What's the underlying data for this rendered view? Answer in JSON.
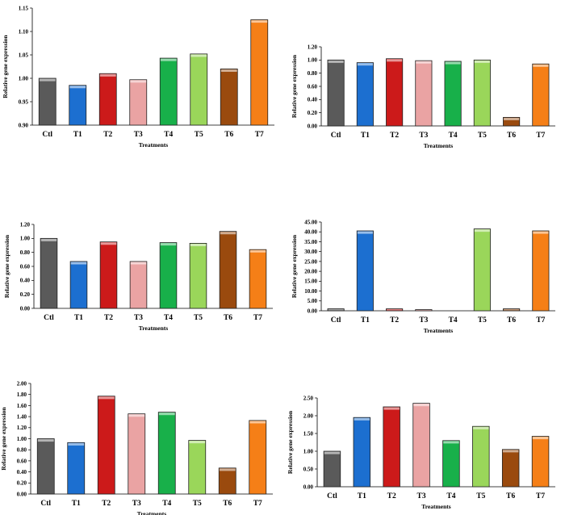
{
  "colors": {
    "Ctl": "#5a5a5a",
    "T1": "#1c6fd0",
    "T2": "#cc1a1a",
    "T3": "#eaa3a3",
    "T4": "#18b04a",
    "T5": "#9ad65a",
    "T6": "#9a4a0e",
    "T7": "#f57f17"
  },
  "chart_data": [
    {
      "type": "bar",
      "categories": [
        "Ctl",
        "T1",
        "T2",
        "T3",
        "T4",
        "T5",
        "T6",
        "T7"
      ],
      "values": [
        1.0,
        0.985,
        1.01,
        0.997,
        1.043,
        1.052,
        1.02,
        1.125
      ],
      "ylim": [
        0.9,
        1.15
      ],
      "yticks": [
        "0.90",
        "0.95",
        "1.00",
        "1.05",
        "1.10",
        "1.15"
      ],
      "ylabel": "Relative gene expression",
      "xlabel": "Treatments"
    },
    {
      "type": "bar",
      "categories": [
        "Ctl",
        "T1",
        "T2",
        "T3",
        "T4",
        "T5",
        "T6",
        "T7"
      ],
      "values": [
        1.0,
        0.96,
        1.02,
        0.99,
        0.98,
        1.0,
        0.13,
        0.94
      ],
      "ylim": [
        0,
        1.2
      ],
      "yticks": [
        "0.00",
        "0.20",
        "0.40",
        "0.60",
        "0.80",
        "1.00",
        "1.20"
      ],
      "ylabel": "Relative gene expression",
      "xlabel": "Treatments"
    },
    {
      "type": "bar",
      "categories": [
        "Ctl",
        "T1",
        "T2",
        "T3",
        "T4",
        "T5",
        "T6",
        "T7"
      ],
      "values": [
        1.0,
        0.67,
        0.95,
        0.67,
        0.94,
        0.93,
        1.1,
        0.84
      ],
      "ylim": [
        0,
        1.2
      ],
      "yticks": [
        "0.00",
        "0.20",
        "0.40",
        "0.60",
        "0.80",
        "1.00",
        "1.20"
      ],
      "ylabel": "Relative gene expression",
      "xlabel": "Treatments"
    },
    {
      "type": "bar",
      "categories": [
        "Ctl",
        "T1",
        "T2",
        "T3",
        "T4",
        "T5",
        "T6",
        "T7"
      ],
      "values": [
        1.0,
        40.5,
        1.0,
        0.6,
        0.0,
        41.5,
        1.0,
        40.5
      ],
      "ylim": [
        0,
        45
      ],
      "yticks": [
        "0.00",
        "5.00",
        "10.00",
        "15.00",
        "20.00",
        "25.00",
        "30.00",
        "35.00",
        "40.00",
        "45.00"
      ],
      "ylabel": "Relative gene expression",
      "xlabel": "Treatments"
    },
    {
      "type": "bar",
      "categories": [
        "Ctl",
        "T1",
        "T2",
        "T3",
        "T4",
        "T5",
        "T6",
        "T7"
      ],
      "values": [
        1.0,
        0.93,
        1.77,
        1.45,
        1.48,
        0.97,
        0.47,
        1.33
      ],
      "ylim": [
        0,
        2.0
      ],
      "yticks": [
        "0.00",
        "0.20",
        "0.40",
        "0.60",
        "0.80",
        "1.00",
        "1.20",
        "1.40",
        "1.60",
        "1.80",
        "2.00"
      ],
      "ylabel": "Relative gene expression",
      "xlabel": "Treatments"
    },
    {
      "type": "bar",
      "categories": [
        "Ctl",
        "T1",
        "T2",
        "T3",
        "T4",
        "T5",
        "T6",
        "T7"
      ],
      "values": [
        1.0,
        1.95,
        2.25,
        2.35,
        1.3,
        1.7,
        1.05,
        1.42
      ],
      "ylim": [
        0,
        2.5
      ],
      "yticks": [
        "0.00",
        "0.50",
        "1.00",
        "1.50",
        "2.00",
        "2.50"
      ],
      "ylabel": "Relative gene expression",
      "xlabel": "Treatments"
    }
  ]
}
